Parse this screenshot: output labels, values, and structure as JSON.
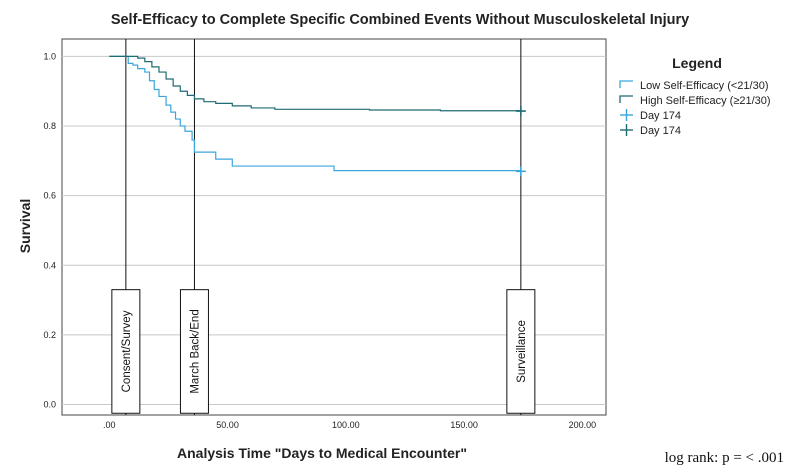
{
  "chart_data": {
    "type": "line",
    "subtype": "kaplan-meier step",
    "title": "Self-Efficacy to Complete Specific Combined Events Without Musculoskeletal Injury",
    "xlabel": "Analysis Time \"Days to Medical Encounter\"",
    "ylabel": "Survival",
    "xlim": [
      -20,
      210
    ],
    "ylim": [
      -0.03,
      1.05
    ],
    "x_ticks": [
      0,
      50,
      100,
      150,
      200
    ],
    "x_tick_labels": [
      ".00",
      "50.00",
      "100.00",
      "150.00",
      "200.00"
    ],
    "y_ticks": [
      0.0,
      0.2,
      0.4,
      0.6,
      0.8,
      1.0
    ],
    "y_tick_labels": [
      "0.0",
      "0.2",
      "0.4",
      "0.6",
      "0.8",
      "1.0"
    ],
    "grid": "horizontal",
    "legend": {
      "title": "Legend",
      "placement": "right",
      "entries": [
        "Low Self-Efficacy (<21/30)",
        "High Self-Efficacy (≥21/30)",
        "Day 174",
        "Day 174"
      ]
    },
    "series": [
      {
        "name": "Low Self-Efficacy (<21/30)",
        "color": "#3aa6dd",
        "x": [
          0,
          7,
          8,
          10,
          12,
          15,
          17,
          19,
          21,
          24,
          26,
          28,
          30,
          32,
          35,
          36,
          45,
          52,
          95,
          174
        ],
        "y": [
          1.0,
          1.0,
          0.98,
          0.975,
          0.965,
          0.955,
          0.93,
          0.905,
          0.885,
          0.86,
          0.84,
          0.82,
          0.8,
          0.785,
          0.76,
          0.725,
          0.705,
          0.685,
          0.672,
          0.67
        ]
      },
      {
        "name": "High Self-Efficacy (≥21/30)",
        "color": "#1e6b73",
        "x": [
          0,
          9,
          12,
          15,
          18,
          21,
          24,
          27,
          30,
          33,
          36,
          40,
          45,
          52,
          60,
          70,
          110,
          140,
          174
        ],
        "y": [
          1.0,
          1.0,
          0.995,
          0.985,
          0.97,
          0.955,
          0.935,
          0.915,
          0.9,
          0.888,
          0.878,
          0.87,
          0.865,
          0.858,
          0.852,
          0.848,
          0.846,
          0.844,
          0.843
        ]
      }
    ],
    "markers": [
      {
        "label": "Day 174",
        "x": 174,
        "y": 0.67,
        "color": "#3aa6dd"
      },
      {
        "label": "Day 174",
        "x": 174,
        "y": 0.843,
        "color": "#1e6b73"
      }
    ],
    "vertical_lines": [
      {
        "x": 7,
        "label": "Consent/Survey"
      },
      {
        "x": 36,
        "label": "March Back/End"
      },
      {
        "x": 174,
        "label": "Surveillance"
      }
    ],
    "annotation": "log rank: p = < .001"
  }
}
